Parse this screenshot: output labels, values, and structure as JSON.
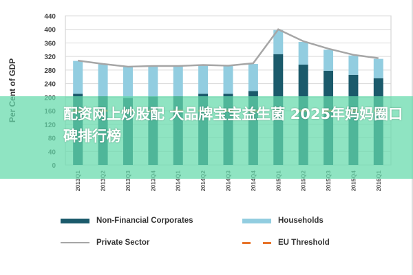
{
  "chart_data": {
    "type": "bar",
    "stacked": true,
    "ylabel": "Per Cent of GDP",
    "ylim": [
      0,
      440
    ],
    "yticks": [
      0,
      40,
      80,
      120,
      160,
      200,
      240,
      280,
      320,
      360,
      400,
      440
    ],
    "grid": true,
    "legend_placement": "bottom",
    "categories": [
      "2013 Q1",
      "2013 Q2",
      "2013 Q3",
      "2013 Q4",
      "2014 Q1",
      "2014 Q2",
      "2014 Q3",
      "2014 Q4",
      "2015 Q1",
      "2015 Q2",
      "2015 Q3",
      "2015 Q4",
      "2016 Q1"
    ],
    "series": [
      {
        "name": "Non-Financial Corporates",
        "kind": "bar",
        "color": "#1b5a6b",
        "values": [
          210,
          203,
          198,
          202,
          203,
          210,
          210,
          218,
          327,
          296,
          278,
          266,
          256
        ]
      },
      {
        "name": "Households",
        "kind": "bar",
        "color": "#92cde0",
        "values": [
          97,
          94,
          92,
          89,
          89,
          83,
          82,
          80,
          71,
          67,
          62,
          57,
          57
        ]
      },
      {
        "name": "Private Sector",
        "kind": "line",
        "color": "#a6a6a6",
        "values": [
          308,
          298,
          290,
          292,
          292,
          295,
          293,
          300,
          400,
          365,
          343,
          325,
          315
        ]
      },
      {
        "name": "EU Threshold",
        "kind": "dashed",
        "color": "#e8742b",
        "values": [
          160,
          160,
          160,
          160,
          160,
          160,
          160,
          160,
          160,
          160,
          160,
          160,
          160
        ]
      }
    ]
  },
  "overlay": {
    "text": "配资网上炒股配 大品牌宝宝益生菌 2025年妈妈圈口碑排行榜"
  }
}
